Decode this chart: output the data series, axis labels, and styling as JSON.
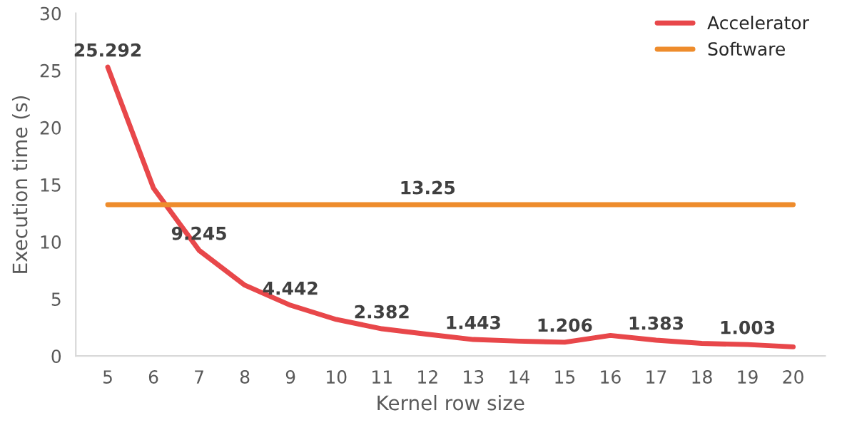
{
  "chart_data": {
    "type": "line",
    "xlabel": "Kernel row size",
    "ylabel": "Execution time (s)",
    "categories": [
      "5",
      "6",
      "7",
      "8",
      "9",
      "10",
      "11",
      "12",
      "13",
      "14",
      "15",
      "16",
      "17",
      "18",
      "19",
      "20"
    ],
    "series": [
      {
        "name": "Accelerator",
        "color": "#e8474a",
        "values": [
          25.292,
          14.7,
          9.245,
          6.2,
          4.442,
          3.2,
          2.382,
          1.9,
          1.443,
          1.3,
          1.206,
          1.8,
          1.383,
          1.1,
          1.003,
          0.8
        ],
        "value_labels": [
          "25.292",
          null,
          "9.245",
          null,
          "4.442",
          null,
          "2.382",
          null,
          "1.443",
          null,
          "1.206",
          null,
          "1.383",
          null,
          "1.003",
          null
        ]
      },
      {
        "name": "Software",
        "color": "#ee8c2c",
        "values": [
          13.25,
          13.25,
          13.25,
          13.25,
          13.25,
          13.25,
          13.25,
          13.25,
          13.25,
          13.25,
          13.25,
          13.25,
          13.25,
          13.25,
          13.25,
          13.25
        ],
        "value_labels": [
          null,
          null,
          null,
          null,
          null,
          null,
          null,
          "13.25",
          null,
          null,
          null,
          null,
          null,
          null,
          null,
          null
        ]
      }
    ],
    "ylim": [
      0,
      30
    ],
    "yticks": [
      0,
      5,
      10,
      15,
      20,
      25,
      30
    ],
    "grid": false,
    "legend": "top right",
    "marker": "none",
    "line_style": "solid"
  }
}
